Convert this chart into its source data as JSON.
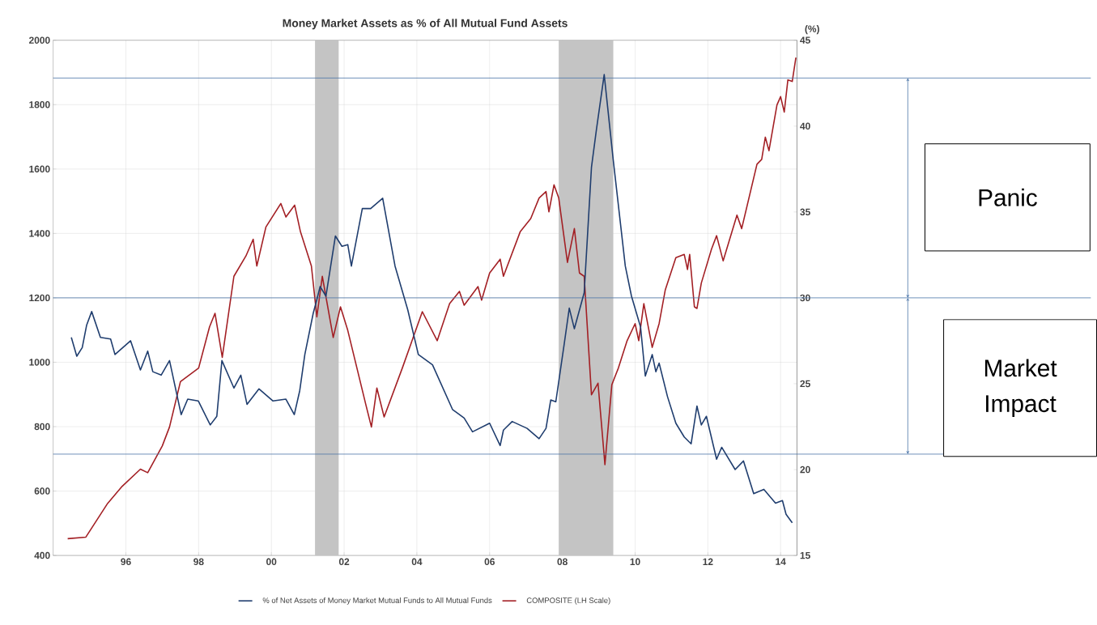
{
  "chart_data": {
    "type": "line",
    "title": "Money Market Assets as % of All Mutual Fund Assets",
    "y2label": "(%)",
    "xlim": [
      1994,
      2014.45
    ],
    "xticks": [
      {
        "value": 1996,
        "label": "96"
      },
      {
        "value": 1998,
        "label": "98"
      },
      {
        "value": 2000,
        "label": "00"
      },
      {
        "value": 2002,
        "label": "02"
      },
      {
        "value": 2004,
        "label": "04"
      },
      {
        "value": 2006,
        "label": "06"
      },
      {
        "value": 2008,
        "label": "08"
      },
      {
        "value": 2010,
        "label": "10"
      },
      {
        "value": 2012,
        "label": "12"
      },
      {
        "value": 2014,
        "label": "14"
      }
    ],
    "ylim": [
      400,
      2000
    ],
    "yticks": [
      400,
      600,
      800,
      1000,
      1200,
      1400,
      1600,
      1800,
      2000
    ],
    "y2lim": [
      15,
      45
    ],
    "y2ticks": [
      15,
      20,
      25,
      30,
      35,
      40,
      45
    ],
    "grid": true,
    "legend": "bottom",
    "series": [
      {
        "name": "% of Net Assets of Money Market Mutual Funds to All Mutual Funds",
        "color": "#1f3d6e",
        "axis": "y2",
        "x": [
          1994.5,
          1994.65,
          1994.8,
          1994.92,
          1995.06,
          1995.3,
          1995.58,
          1995.7,
          1996.13,
          1996.4,
          1996.6,
          1996.74,
          1996.97,
          1997.2,
          1997.52,
          1997.7,
          1997.99,
          1998.32,
          1998.5,
          1998.64,
          1998.97,
          1999.16,
          1999.33,
          1999.66,
          2000.04,
          2000.4,
          2000.63,
          2000.78,
          2000.92,
          2001.15,
          2001.25,
          2001.34,
          2001.5,
          2001.76,
          2001.94,
          2002.1,
          2002.2,
          2002.5,
          2002.73,
          2003.06,
          2003.4,
          2003.75,
          2004.04,
          2004.43,
          2004.98,
          2005.3,
          2005.53,
          2006.0,
          2006.29,
          2006.38,
          2006.62,
          2007.03,
          2007.36,
          2007.55,
          2007.68,
          2007.82,
          2008.05,
          2008.19,
          2008.33,
          2008.6,
          2008.8,
          2008.94,
          2009.15,
          2009.4,
          2009.73,
          2009.9,
          2010.15,
          2010.28,
          2010.47,
          2010.57,
          2010.66,
          2010.89,
          2011.12,
          2011.35,
          2011.54,
          2011.7,
          2011.82,
          2011.96,
          2012.24,
          2012.38,
          2012.75,
          2012.98,
          2013.26,
          2013.54,
          2013.86,
          2014.05,
          2014.15,
          2014.32
        ],
        "values": [
          27.7,
          26.6,
          27.1,
          28.4,
          29.2,
          27.7,
          27.6,
          26.7,
          27.5,
          25.8,
          26.9,
          25.7,
          25.5,
          26.35,
          23.2,
          24.1,
          24.0,
          22.6,
          23.1,
          26.35,
          24.75,
          25.5,
          23.8,
          24.7,
          24.0,
          24.1,
          23.2,
          24.6,
          26.7,
          29.1,
          29.9,
          30.66,
          30.1,
          33.6,
          33.0,
          33.1,
          31.85,
          35.2,
          35.2,
          35.8,
          31.85,
          29.3,
          26.7,
          26.1,
          23.5,
          23.0,
          22.2,
          22.7,
          21.4,
          22.3,
          22.8,
          22.4,
          21.8,
          22.4,
          24.05,
          23.95,
          27.3,
          29.4,
          28.2,
          30.3,
          37.6,
          39.85,
          43.0,
          38.0,
          31.85,
          30.1,
          28.3,
          25.45,
          26.7,
          25.7,
          26.2,
          24.25,
          22.7,
          21.9,
          21.5,
          23.7,
          22.6,
          23.1,
          20.6,
          21.3,
          20.0,
          20.5,
          18.6,
          18.85,
          18.05,
          18.2,
          17.4,
          16.9
        ]
      },
      {
        "name": "COMPOSITE (LH Scale)",
        "color": "#a31f24",
        "x": [
          1994.4,
          1994.9,
          1995.5,
          1995.9,
          1996.4,
          1996.6,
          1997.0,
          1997.2,
          1997.5,
          1998.0,
          1998.3,
          1998.45,
          1998.65,
          1998.97,
          1999.3,
          1999.5,
          1999.6,
          1999.85,
          2000.26,
          2000.4,
          2000.64,
          2000.8,
          2001.1,
          2001.25,
          2001.4,
          2001.7,
          2001.9,
          2002.1,
          2002.6,
          2002.75,
          2002.9,
          2003.1,
          2003.6,
          2004.15,
          2004.56,
          2004.9,
          2005.17,
          2005.3,
          2005.68,
          2005.78,
          2006.0,
          2006.29,
          2006.38,
          2006.84,
          2007.13,
          2007.36,
          2007.55,
          2007.63,
          2007.77,
          2007.9,
          2008.14,
          2008.33,
          2008.47,
          2008.6,
          2008.8,
          2008.98,
          2009.17,
          2009.36,
          2009.54,
          2009.78,
          2010.0,
          2010.1,
          2010.24,
          2010.47,
          2010.66,
          2010.83,
          2011.12,
          2011.35,
          2011.44,
          2011.5,
          2011.63,
          2011.7,
          2011.82,
          2012.1,
          2012.24,
          2012.42,
          2012.8,
          2012.93,
          2013.35,
          2013.48,
          2013.58,
          2013.68,
          2013.9,
          2014.0,
          2014.1,
          2014.2,
          2014.32,
          2014.42
        ],
        "values": [
          452,
          457,
          562,
          615,
          668,
          657,
          740,
          799,
          940,
          982,
          1110,
          1152,
          1015,
          1267,
          1330,
          1382,
          1299,
          1420,
          1493,
          1451,
          1488,
          1405,
          1299,
          1141,
          1267,
          1077,
          1172,
          1099,
          867,
          799,
          920,
          830,
          982,
          1157,
          1067,
          1182,
          1220,
          1177,
          1235,
          1193,
          1277,
          1320,
          1267,
          1405,
          1446,
          1510,
          1530,
          1467,
          1551,
          1510,
          1310,
          1415,
          1277,
          1267,
          899,
          935,
          682,
          930,
          982,
          1067,
          1120,
          1067,
          1182,
          1046,
          1120,
          1225,
          1325,
          1335,
          1288,
          1335,
          1172,
          1167,
          1246,
          1351,
          1393,
          1315,
          1457,
          1415,
          1615,
          1630,
          1699,
          1657,
          1799,
          1825,
          1777,
          1877,
          1872,
          1946
        ]
      }
    ],
    "bands": [
      {
        "axis": "x",
        "from": 2001.2,
        "to": 2001.85,
        "color": "#c4c4c4"
      },
      {
        "axis": "x",
        "from": 2007.9,
        "to": 2009.4,
        "color": "#c4c4c4"
      }
    ],
    "ref_lines": [
      {
        "axis": "y2",
        "value": 42.8,
        "color": "#4a74a8"
      },
      {
        "axis": "y2",
        "value": 30,
        "color": "#4a74a8"
      },
      {
        "axis": "y2",
        "value": 20.9,
        "color": "#4a74a8"
      }
    ],
    "annotations": [
      "Panic",
      "Market Impact"
    ]
  }
}
